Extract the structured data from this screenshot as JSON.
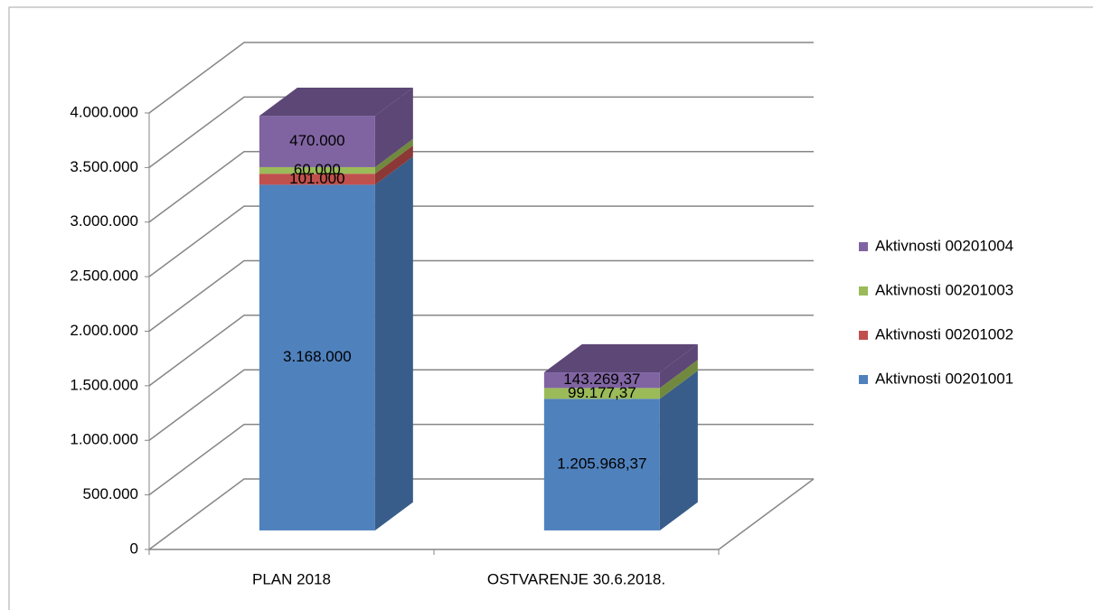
{
  "chart_data": {
    "type": "bar3d_stacked",
    "categories": [
      "PLAN 2018",
      "OSTVARENJE 30.6.2018."
    ],
    "series": [
      {
        "name": "Aktivnosti 00201001",
        "color": "#4f81bd",
        "side_color": "#385d8a",
        "values": [
          3168000,
          1205968.37
        ],
        "value_labels": [
          "3.168.000",
          "1.205.968,37"
        ]
      },
      {
        "name": "Aktivnosti 00201002",
        "color": "#c0504d",
        "side_color": "#8c3836",
        "values": [
          101000,
          null
        ],
        "value_labels": [
          "101.000",
          null
        ]
      },
      {
        "name": "Aktivnosti 00201003",
        "color": "#9bbb59",
        "side_color": "#71893f",
        "values": [
          60000,
          99177.37
        ],
        "value_labels": [
          "60.000",
          "99.177,37"
        ]
      },
      {
        "name": "Aktivnosti 00201004",
        "color": "#8064a2",
        "side_color": "#5c4776",
        "values": [
          470000,
          143269.37
        ],
        "value_labels": [
          "470.000",
          "143.269,37"
        ]
      }
    ],
    "ylim": [
      0,
      4000000
    ],
    "yticks": [
      0,
      {
        "value": 500000,
        "label": "500.000"
      },
      {
        "value": 1000000,
        "label": "1.000.000"
      },
      {
        "value": 1500000,
        "label": "1.500.000"
      },
      {
        "value": 2000000,
        "label": "2.000.000"
      },
      {
        "value": 2500000,
        "label": "2.500.000"
      },
      {
        "value": 3000000,
        "label": "3.000.000"
      },
      {
        "value": 3500000,
        "label": "3.500.000"
      },
      {
        "value": 4000000,
        "label": "4.000.000"
      }
    ],
    "grid": true,
    "legend": "right"
  }
}
